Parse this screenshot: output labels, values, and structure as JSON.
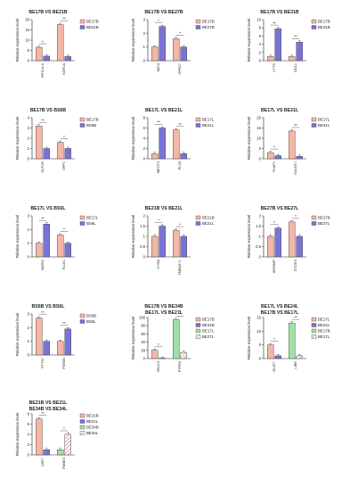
{
  "figure": {
    "legend_markers": {
      "sig_one": "*",
      "sig_two": "**"
    }
  },
  "chart_data": [
    {
      "type": "bar",
      "title": "BE17B VS BE21B",
      "ylabel": "Relative expression level",
      "ylim": [
        0,
        20
      ],
      "yticks": [
        0,
        5,
        10,
        15,
        20
      ],
      "categories": [
        "RPS14-A",
        "KDR1A"
      ],
      "series": [
        {
          "name": "BE17B",
          "color": "#f4b6a6",
          "hatch": "none",
          "values": [
            6.5,
            17.6
          ]
        },
        {
          "name": "BE21B",
          "color": "#7a73d6",
          "hatch": "none",
          "values": [
            2.2,
            2.0
          ]
        }
      ],
      "significance": [
        "*",
        "**"
      ],
      "legend": "top-right"
    },
    {
      "type": "bar",
      "title": "BE17B VS BE27B",
      "ylabel": "Relative expression level",
      "ylim": [
        0,
        3
      ],
      "yticks": [
        0,
        1,
        2,
        3
      ],
      "categories": [
        "MIC3",
        "GPR27"
      ],
      "series": [
        {
          "name": "BE17B",
          "color": "#f4b6a6",
          "hatch": "none",
          "values": [
            1.0,
            1.6
          ]
        },
        {
          "name": "BE27B",
          "color": "#7a73d6",
          "hatch": "none",
          "values": [
            2.5,
            1.0
          ]
        }
      ],
      "significance": [
        "*",
        "*"
      ],
      "legend": "top-right"
    },
    {
      "type": "bar",
      "title": "BE17B VS BE31B",
      "ylabel": "Relative expression level",
      "ylim": [
        0,
        10
      ],
      "yticks": [
        0,
        2,
        4,
        6,
        8,
        10
      ],
      "categories": [
        "CYTS",
        "DDL1"
      ],
      "series": [
        {
          "name": "BE17B",
          "color": "#f4b6a6",
          "hatch": "none",
          "values": [
            1.0,
            1.0
          ]
        },
        {
          "name": "BE31B",
          "color": "#7a73d6",
          "hatch": "none",
          "values": [
            7.8,
            4.5
          ]
        }
      ],
      "significance": [
        "**",
        "**"
      ],
      "legend": "top-right"
    },
    {
      "type": "bar",
      "title": "BE17B VS BS6B",
      "ylabel": "Relative expression level",
      "ylim": [
        0,
        4
      ],
      "yticks": [
        0,
        1,
        2,
        3,
        4
      ],
      "categories": [
        "GLP1R",
        "SPP1"
      ],
      "series": [
        {
          "name": "BE17B",
          "color": "#f4b6a6",
          "hatch": "none",
          "values": [
            3.2,
            1.6
          ]
        },
        {
          "name": "BS6B",
          "color": "#7a73d6",
          "hatch": "none",
          "values": [
            1.0,
            1.0
          ]
        }
      ],
      "significance": [
        "**",
        "*"
      ],
      "legend": "top-right"
    },
    {
      "type": "bar",
      "title": "BE17L VS BE21L",
      "ylabel": "Relative expression level",
      "ylim": [
        0,
        8
      ],
      "yticks": [
        0,
        2,
        4,
        6,
        8
      ],
      "categories": [
        "MECT2",
        "PLS3"
      ],
      "series": [
        {
          "name": "BE17L",
          "color": "#f4b6a6",
          "hatch": "none",
          "values": [
            1.0,
            5.6
          ]
        },
        {
          "name": "BE21L",
          "color": "#7a73d6",
          "hatch": "none",
          "values": [
            6.0,
            1.0
          ]
        }
      ],
      "significance": [
        "**",
        "**"
      ],
      "legend": "top-right"
    },
    {
      "type": "bar",
      "title": "BE17L VS BE31L",
      "ylabel": "Relative expression level",
      "ylim": [
        0,
        20
      ],
      "yticks": [
        0,
        5,
        10,
        15,
        20
      ],
      "categories": [
        "THAP1",
        "GALNT1"
      ],
      "series": [
        {
          "name": "BE17L",
          "color": "#f4b6a6",
          "hatch": "none",
          "values": [
            3.0,
            13.5
          ]
        },
        {
          "name": "BE31L",
          "color": "#7a73d6",
          "hatch": "none",
          "values": [
            1.5,
            1.2
          ]
        }
      ],
      "significance": [
        "*",
        "**"
      ],
      "legend": "top-right"
    },
    {
      "type": "bar",
      "title": "BE17L VS BS6L",
      "ylabel": "Relative expression level",
      "ylim": [
        0,
        3
      ],
      "yticks": [
        0,
        1,
        2,
        3
      ],
      "categories": [
        "VAGE2",
        "FLLE1"
      ],
      "series": [
        {
          "name": "BE17L",
          "color": "#f4b6a6",
          "hatch": "none",
          "values": [
            1.0,
            1.6
          ]
        },
        {
          "name": "BS6L",
          "color": "#7a73d6",
          "hatch": "none",
          "values": [
            2.4,
            1.0
          ]
        }
      ],
      "significance": [
        "**",
        "*"
      ],
      "legend": "top-right"
    },
    {
      "type": "bar",
      "title": "BE21B VS BE21L",
      "ylabel": "Relative expression level",
      "ylim": [
        0,
        2.0
      ],
      "yticks": [
        0,
        0.5,
        1.0,
        1.5,
        2.0
      ],
      "categories": [
        "CYGB",
        "TMEM171"
      ],
      "series": [
        {
          "name": "BE21B",
          "color": "#f4b6a6",
          "hatch": "none",
          "values": [
            1.0,
            1.3
          ]
        },
        {
          "name": "BE21L",
          "color": "#7a73d6",
          "hatch": "none",
          "values": [
            1.5,
            1.0
          ]
        }
      ],
      "significance": [
        "*",
        "*"
      ],
      "legend": "top-right"
    },
    {
      "type": "bar",
      "title": "BE27B VS BE27L",
      "ylabel": "Relative expression level",
      "ylim": [
        0,
        2.0
      ],
      "yticks": [
        0,
        0.5,
        1.0,
        1.5,
        2.0
      ],
      "categories": [
        "ARDD8P",
        "STC5IX"
      ],
      "series": [
        {
          "name": "BE27B",
          "color": "#f4b6a6",
          "hatch": "none",
          "values": [
            1.0,
            1.7
          ]
        },
        {
          "name": "BE27L",
          "color": "#7a73d6",
          "hatch": "none",
          "values": [
            1.4,
            1.0
          ]
        }
      ],
      "significance": [
        "*",
        "*"
      ],
      "legend": "top-right"
    },
    {
      "type": "bar",
      "title": "BS6B VS BS6L",
      "ylabel": "Relative expression level",
      "ylim": [
        0,
        3
      ],
      "yticks": [
        0,
        1,
        2,
        3
      ],
      "categories": [
        "PTTS7",
        "PDK5N"
      ],
      "series": [
        {
          "name": "BS6B",
          "color": "#f4b6a6",
          "hatch": "none",
          "values": [
            2.7,
            1.0
          ]
        },
        {
          "name": "BS6L",
          "color": "#7a73d6",
          "hatch": "none",
          "values": [
            1.0,
            1.9
          ]
        }
      ],
      "significance": [
        "**",
        "**"
      ],
      "legend": "top-right"
    },
    {
      "type": "bar",
      "title": "BE17B VS BE34B\nBE17L VS BE27L",
      "ylabel": "Relative expression level",
      "ylim": [
        0,
        100
      ],
      "yticks": [
        0,
        20,
        40,
        60,
        80,
        100
      ],
      "categories": [
        "SNX19",
        "PTPR4"
      ],
      "series": [
        {
          "name": "BE17B",
          "color": "#f4b6a6",
          "hatch": "none",
          "values": [
            20,
            0
          ]
        },
        {
          "name": "BE34B",
          "color": "#7a73d6",
          "hatch": "none",
          "values": [
            1,
            0
          ]
        },
        {
          "name": "BE17L",
          "color": "#9fe0a6",
          "hatch": "none",
          "values": [
            0,
            95
          ]
        },
        {
          "name": "BE27L",
          "color": "#f4b6a6",
          "hatch": "stripe",
          "values": [
            0,
            15
          ]
        }
      ],
      "significance": [
        "*",
        "**"
      ],
      "legend": "top-right"
    },
    {
      "type": "bar",
      "title": "BE17L VS BE24L\nBE17B VS BE17L",
      "ylabel": "Relative expression level",
      "ylim": [
        0,
        15
      ],
      "yticks": [
        0,
        5,
        10,
        15
      ],
      "categories": [
        "DLAT7",
        "LIBR"
      ],
      "series": [
        {
          "name": "BE17L",
          "color": "#f4b6a6",
          "hatch": "none",
          "values": [
            5.0,
            0
          ]
        },
        {
          "name": "BE24L",
          "color": "#7a73d6",
          "hatch": "none",
          "values": [
            1.0,
            0
          ]
        },
        {
          "name": "BE17B",
          "color": "#9fe0a6",
          "hatch": "none",
          "values": [
            0,
            13.0
          ]
        },
        {
          "name": "BE17L",
          "color": "#f4b6a6",
          "hatch": "stripe",
          "values": [
            0,
            1.0
          ]
        }
      ],
      "significance": [
        "*",
        "**"
      ],
      "legend": "top-right"
    },
    {
      "type": "bar",
      "title": "BE21B VS BE21L\nBE34B VS BE34L",
      "ylabel": "Relative expression level",
      "ylim": [
        0,
        8
      ],
      "yticks": [
        0,
        2,
        4,
        6,
        8
      ],
      "categories": [
        "USP7",
        "PAME4"
      ],
      "series": [
        {
          "name": "BE21B",
          "color": "#f4b6a6",
          "hatch": "none",
          "values": [
            7.0,
            0
          ]
        },
        {
          "name": "BE21L",
          "color": "#7a73d6",
          "hatch": "none",
          "values": [
            1.0,
            0
          ]
        },
        {
          "name": "BE34B",
          "color": "#9fe0a6",
          "hatch": "none",
          "values": [
            0,
            1.0
          ]
        },
        {
          "name": "BE34L",
          "color": "#f4b6a6",
          "hatch": "stripe",
          "values": [
            0,
            4.0
          ]
        }
      ],
      "significance": [
        "**",
        "*"
      ],
      "legend": "top-right"
    }
  ]
}
